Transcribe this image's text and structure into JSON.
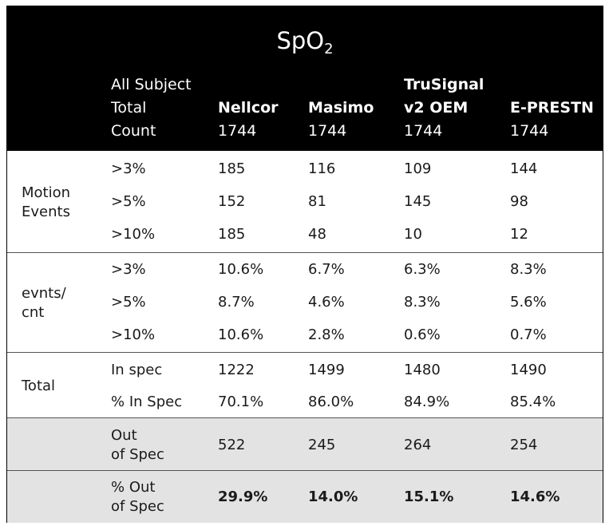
{
  "title": {
    "main": "SpO",
    "sub": "2"
  },
  "header": {
    "col0": [
      "All Subject",
      "Total",
      "Count"
    ],
    "cols": [
      {
        "name_lines": [
          "Nellcor"
        ],
        "count": "1744"
      },
      {
        "name_lines": [
          "Masimo"
        ],
        "count": "1744"
      },
      {
        "name_lines": [
          "TruSignal",
          "v2 OEM"
        ],
        "count": "1744"
      },
      {
        "name_lines": [
          "E-PRESTN"
        ],
        "count": "1744"
      }
    ]
  },
  "sections": [
    {
      "label_lines": [
        "Motion",
        "Events"
      ],
      "rows": [
        {
          "label": ">3%",
          "values": [
            "185",
            "116",
            "109",
            "144"
          ]
        },
        {
          "label": ">5%",
          "values": [
            "152",
            "81",
            "145",
            "98"
          ]
        },
        {
          "label": ">10%",
          "values": [
            "185",
            "48",
            "10",
            "12"
          ]
        }
      ]
    },
    {
      "label_lines": [
        "evnts/",
        "cnt"
      ],
      "rows": [
        {
          "label": ">3%",
          "values": [
            "10.6%",
            "6.7%",
            "6.3%",
            "8.3%"
          ]
        },
        {
          "label": ">5%",
          "values": [
            "8.7%",
            "4.6%",
            "8.3%",
            "5.6%"
          ]
        },
        {
          "label": ">10%",
          "values": [
            "10.6%",
            "2.8%",
            "0.6%",
            "0.7%"
          ]
        }
      ]
    },
    {
      "label_lines": [
        "Total"
      ],
      "rows": [
        {
          "label": "In spec",
          "values": [
            "1222",
            "1499",
            "1480",
            "1490"
          ]
        },
        {
          "label": "% In Spec",
          "values": [
            "70.1%",
            "86.0%",
            "84.9%",
            "85.4%"
          ]
        }
      ]
    }
  ],
  "out_of_spec": {
    "label_lines": [
      "Out",
      "of Spec"
    ],
    "values": [
      "522",
      "245",
      "264",
      "254"
    ]
  },
  "pct_out_of_spec": {
    "label_lines": [
      "% Out",
      "of Spec"
    ],
    "values": [
      "29.9%",
      "14.0%",
      "15.1%",
      "14.6%"
    ]
  }
}
